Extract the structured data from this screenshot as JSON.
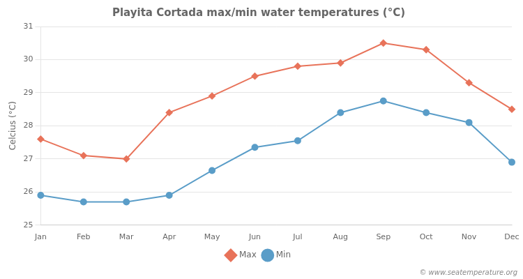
{
  "chart_data": {
    "type": "line",
    "title": "Playita Cortada max/min water temperatures (°C)",
    "ylabel": "Celcius (°C)",
    "categories": [
      "Jan",
      "Feb",
      "Mar",
      "Apr",
      "May",
      "Jun",
      "Jul",
      "Aug",
      "Sep",
      "Oct",
      "Nov",
      "Dec"
    ],
    "series": [
      {
        "name": "Max",
        "color": "#e8735a",
        "marker": "diamond",
        "values": [
          27.6,
          27.1,
          27.0,
          28.4,
          28.9,
          29.5,
          29.8,
          29.9,
          30.5,
          30.3,
          29.3,
          28.5
        ]
      },
      {
        "name": "Min",
        "color": "#5a9dc8",
        "marker": "circle",
        "values": [
          25.9,
          25.7,
          25.7,
          25.9,
          26.65,
          27.35,
          27.55,
          28.4,
          28.75,
          28.4,
          28.1,
          26.9
        ]
      }
    ],
    "ylim": [
      25,
      31
    ],
    "yticks": [
      25,
      26,
      27,
      28,
      29,
      30,
      31
    ],
    "grid": "y",
    "legend": "bottom",
    "annotations": [
      "© www.seatemperature.org"
    ]
  }
}
